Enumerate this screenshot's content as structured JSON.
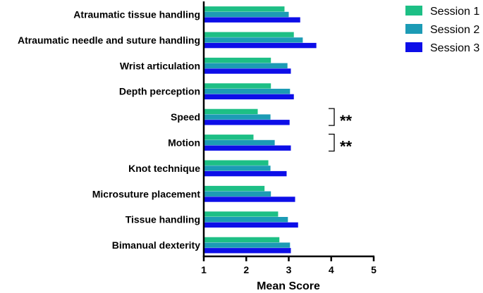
{
  "chart_data": {
    "type": "bar",
    "orientation": "horizontal",
    "categories": [
      "Atraumatic tissue handling",
      "Atraumatic needle and suture handling",
      "Wrist articulation",
      "Depth perception",
      "Speed",
      "Motion",
      "Knot technique",
      "Microsuture placement",
      "Tissue handling",
      "Bimanual dexterity"
    ],
    "series": [
      {
        "name": "Session 1",
        "color": "#1dbf85",
        "values": [
          2.9,
          3.12,
          2.58,
          2.58,
          2.27,
          2.17,
          2.52,
          2.43,
          2.75,
          2.78
        ]
      },
      {
        "name": "Session 2",
        "color": "#1c9bb5",
        "values": [
          3.0,
          3.33,
          2.97,
          3.03,
          2.57,
          2.67,
          2.57,
          2.58,
          2.98,
          3.03
        ]
      },
      {
        "name": "Session 3",
        "color": "#0d0ee8",
        "values": [
          3.27,
          3.65,
          3.05,
          3.12,
          3.02,
          3.05,
          2.95,
          3.15,
          3.22,
          3.05
        ]
      }
    ],
    "xlabel": "Mean Score",
    "ylabel": "",
    "xlim": [
      1,
      5
    ],
    "xticks": [
      "1",
      "2",
      "3",
      "4",
      "5"
    ],
    "grid": false,
    "legend_position": "top-right",
    "significance": [
      {
        "category": "Speed",
        "label": "**"
      },
      {
        "category": "Motion",
        "label": "**"
      }
    ]
  }
}
